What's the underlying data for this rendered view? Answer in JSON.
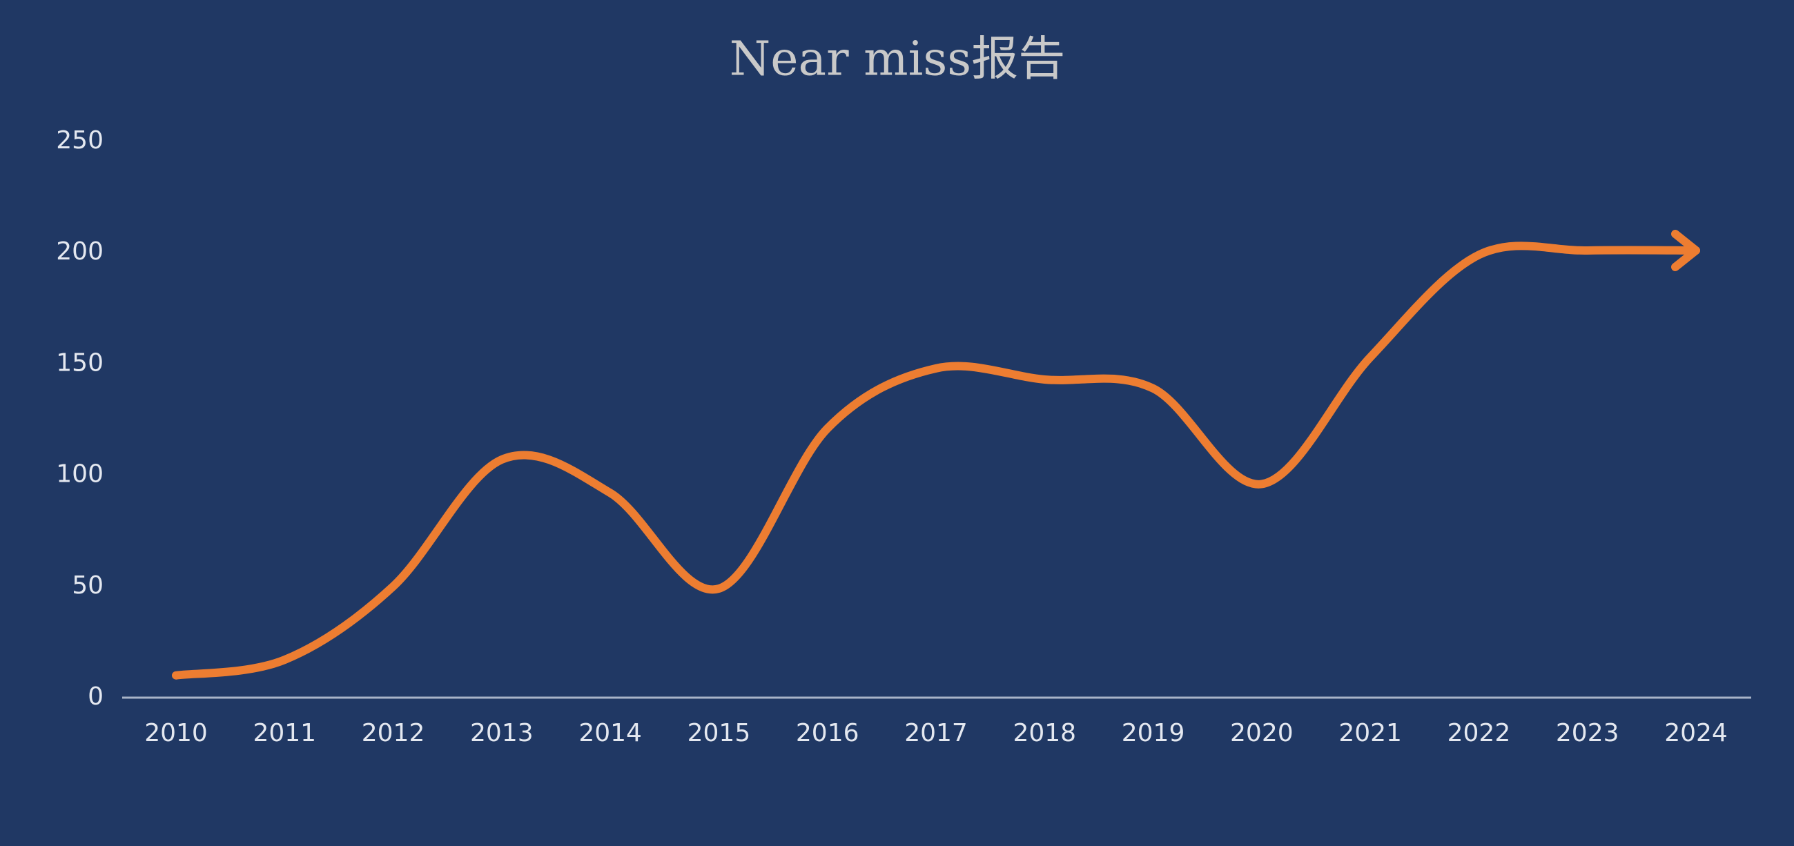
{
  "chart_data": {
    "type": "line",
    "title": "Near miss报告",
    "categories": [
      "2010",
      "2011",
      "2012",
      "2013",
      "2014",
      "2015",
      "2016",
      "2017",
      "2018",
      "2019",
      "2020",
      "2021",
      "2022",
      "2023",
      "2024"
    ],
    "values": [
      10,
      17,
      50,
      107,
      92,
      49,
      121,
      148,
      143,
      139,
      96,
      153,
      199,
      201,
      201
    ],
    "color": "#ed7d31",
    "smooth": true,
    "end_arrow": true,
    "ylim": [
      0,
      250
    ],
    "yticks": [
      0,
      50,
      100,
      150,
      200,
      250
    ],
    "grid": false
  }
}
